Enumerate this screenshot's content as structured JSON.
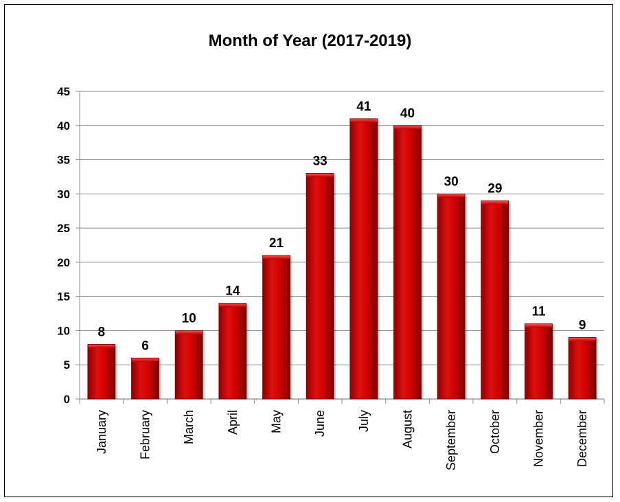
{
  "chart_data": {
    "type": "bar",
    "title": "Month of Year (2017-2019)",
    "xlabel": "",
    "ylabel": "",
    "categories": [
      "January",
      "February",
      "March",
      "April",
      "May",
      "June",
      "July",
      "August",
      "September",
      "October",
      "November",
      "December"
    ],
    "values": [
      8,
      6,
      10,
      14,
      21,
      33,
      41,
      40,
      30,
      29,
      11,
      9
    ],
    "ylim": [
      0,
      45
    ],
    "yticks": [
      0,
      5,
      10,
      15,
      20,
      25,
      30,
      35,
      40,
      45
    ],
    "grid": true,
    "legend": "none",
    "data_labels": true,
    "bar_color": "#cc0000"
  }
}
